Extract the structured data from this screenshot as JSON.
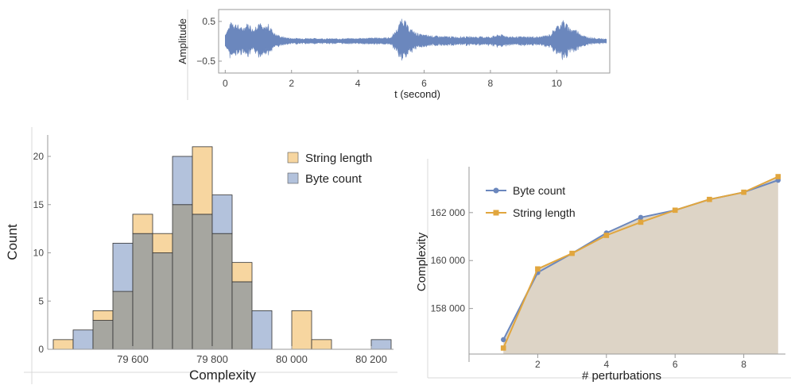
{
  "colors": {
    "blue": "#6b87bd",
    "blue_fill": "#b3c2dc",
    "orange": "#e1a63e",
    "orange_fill": "#f7d6a0",
    "overlap": "#a6a6a0",
    "area": "#ddd4c6",
    "axis": "#9a9a9a"
  },
  "chart_data": [
    {
      "type": "line",
      "xlabel": "t (second)",
      "ylabel": "Amplitude",
      "xlim": [
        -0.2,
        11.6
      ],
      "ylim": [
        -0.8,
        0.8
      ],
      "xticks": [
        "0",
        "2",
        "4",
        "6",
        "8",
        "10"
      ],
      "yticks": [
        "0.5",
        "−0.5"
      ],
      "series": [
        {
          "envelope_t": [
            0,
            0.2,
            0.35,
            0.5,
            0.7,
            0.85,
            1.0,
            1.15,
            1.3,
            1.5,
            1.7,
            2.0,
            2.5,
            3,
            3.5,
            4,
            4.5,
            5,
            5.2,
            5.35,
            5.5,
            5.7,
            5.9,
            6.2,
            6.5,
            7,
            7.5,
            8,
            8.3,
            8.6,
            9,
            9.5,
            9.8,
            10,
            10.2,
            10.4,
            10.6,
            10.8,
            11,
            11.2,
            11.5
          ],
          "envelope_amplitude": [
            0.2,
            0.55,
            0.45,
            0.35,
            0.5,
            0.3,
            0.55,
            0.35,
            0.45,
            0.2,
            0.12,
            0.08,
            0.08,
            0.07,
            0.07,
            0.08,
            0.09,
            0.1,
            0.35,
            0.68,
            0.4,
            0.25,
            0.18,
            0.15,
            0.13,
            0.12,
            0.12,
            0.12,
            0.18,
            0.12,
            0.12,
            0.12,
            0.18,
            0.4,
            0.55,
            0.35,
            0.3,
            0.15,
            0.1,
            0.08,
            0.06
          ]
        }
      ]
    },
    {
      "type": "bar",
      "xlabel": "Complexity",
      "ylabel": "Count",
      "xlim": [
        79400,
        80250
      ],
      "ylim": [
        0,
        22
      ],
      "xticks": [
        "79 600",
        "79 800",
        "80 000",
        "80 200"
      ],
      "yticks": [
        "0",
        "5",
        "10",
        "15",
        "20"
      ],
      "legend": "top-right",
      "bin_edges": [
        79400,
        79450,
        79500,
        79550,
        79600,
        79650,
        79700,
        79750,
        79800,
        79850,
        79900,
        79950,
        80000,
        80050,
        80100,
        80150,
        80200,
        80250
      ],
      "series": [
        {
          "name": "String length",
          "values": [
            1,
            0,
            4,
            6,
            14,
            12,
            15,
            21,
            12,
            9,
            0,
            0,
            4,
            1,
            0,
            0,
            0
          ]
        },
        {
          "name": "Byte count",
          "values": [
            0,
            2,
            3,
            11,
            12,
            10,
            20,
            14,
            16,
            7,
            4,
            0,
            0,
            0,
            0,
            0,
            1
          ]
        }
      ]
    },
    {
      "type": "line",
      "xlabel": "# perturbations",
      "ylabel": "Complexity",
      "xlim": [
        0,
        9.2
      ],
      "ylim": [
        156100,
        164000
      ],
      "xticks": [
        "2",
        "4",
        "6",
        "8"
      ],
      "yticks": [
        "158 000",
        "160 000",
        "162 000"
      ],
      "legend": "top-left",
      "series": [
        {
          "name": "Byte count",
          "x": [
            1,
            2,
            3,
            4,
            5,
            6,
            7,
            8,
            9
          ],
          "y": [
            156700,
            159500,
            160300,
            161150,
            161800,
            162100,
            162550,
            162850,
            163350
          ]
        },
        {
          "name": "String length",
          "x": [
            1,
            2,
            3,
            4,
            5,
            6,
            7,
            8,
            9
          ],
          "y": [
            156350,
            159650,
            160300,
            161050,
            161600,
            162100,
            162550,
            162850,
            163500
          ]
        }
      ]
    }
  ]
}
